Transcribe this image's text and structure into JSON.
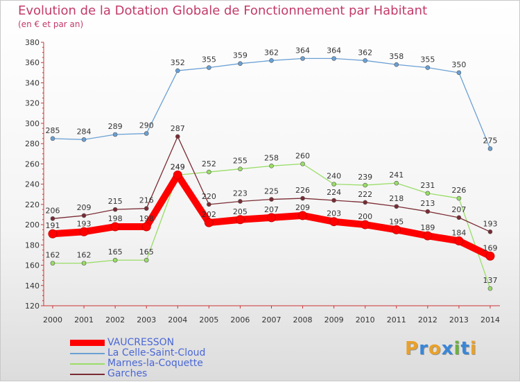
{
  "title": "Evolution de la Dotation Globale de Fonctionnement par Habitant",
  "subtitle": "(en € et par an)",
  "logo": {
    "letters": [
      "P",
      "r",
      "o",
      "x",
      "i",
      "t",
      "i"
    ],
    "colors": [
      "#e9a12b",
      "#3a86d6",
      "#e9a12b",
      "#3a86d6",
      "#69b23b",
      "#3a86d6",
      "#e9a12b"
    ]
  },
  "chart_data": {
    "type": "line",
    "x": [
      "2000",
      "2001",
      "2002",
      "2003",
      "2004",
      "2005",
      "2006",
      "2007",
      "2008",
      "2009",
      "2010",
      "2011",
      "2012",
      "2013",
      "2014"
    ],
    "ylim": [
      120,
      380
    ],
    "yticks": [
      120,
      140,
      160,
      180,
      200,
      220,
      240,
      260,
      280,
      300,
      320,
      340,
      360,
      380
    ],
    "grid": false,
    "legend_position": "bottom-left",
    "series": [
      {
        "name": "VAUCRESSON",
        "color": "#ff0000",
        "values": [
          191,
          193,
          198,
          198,
          249,
          202,
          205,
          207,
          209,
          203,
          200,
          195,
          189,
          184,
          169
        ]
      },
      {
        "name": "La Celle-Saint-Cloud",
        "color": "#6aa0d4",
        "values": [
          285,
          284,
          289,
          290,
          352,
          355,
          359,
          362,
          364,
          364,
          362,
          358,
          355,
          350,
          275
        ]
      },
      {
        "name": "Marnes-la-Coquette",
        "color": "#99dd66",
        "values": [
          162,
          162,
          165,
          165,
          249,
          252,
          255,
          258,
          260,
          240,
          239,
          241,
          231,
          226,
          137
        ]
      },
      {
        "name": "Garches",
        "color": "#7a2b33",
        "values": [
          206,
          209,
          215,
          216,
          287,
          220,
          223,
          225,
          226,
          224,
          222,
          218,
          213,
          207,
          193
        ]
      }
    ]
  }
}
